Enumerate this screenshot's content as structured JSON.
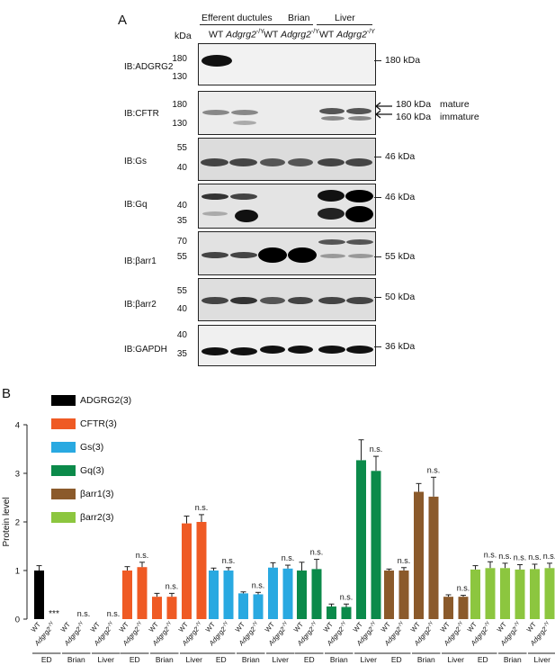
{
  "panelA": {
    "label": "A",
    "kda_header": "kDa",
    "groups": [
      "Efferent ductules",
      "Brian",
      "Liver"
    ],
    "lanes": [
      {
        "wt": "WT",
        "ko": "Adgrg2",
        "sup": "-/Y"
      },
      {
        "wt": "WT",
        "ko": "Adgrg2",
        "sup": "-/Y"
      },
      {
        "wt": "WT",
        "ko": "Adgrg2",
        "sup": "-/Y"
      }
    ],
    "blots": [
      {
        "label": "IB:ADGRG2",
        "left_markers": [
          "180",
          "130"
        ],
        "right_labels": [
          "180 kDa"
        ]
      },
      {
        "label": "IB:CFTR",
        "left_markers": [
          "180",
          "130"
        ],
        "right_labels": [
          "180 kDa",
          "mature",
          "160 kDa",
          "immature"
        ]
      },
      {
        "label": "IB:Gs",
        "left_markers": [
          "55",
          "40"
        ],
        "right_labels": [
          "46 kDa"
        ]
      },
      {
        "label": "IB:Gq",
        "left_markers": [
          "40",
          "35"
        ],
        "right_labels": [
          "46 kDa"
        ]
      },
      {
        "label": "IB:βarr1",
        "left_markers": [
          "70",
          "55"
        ],
        "right_labels": [
          "55 kDa"
        ]
      },
      {
        "label": "IB:βarr2",
        "left_markers": [
          "55",
          "40"
        ],
        "right_labels": [
          "50 kDa"
        ]
      },
      {
        "label": "IB:GAPDH",
        "left_markers": [
          "40",
          "35"
        ],
        "right_labels": [
          "36 kDa"
        ]
      }
    ]
  },
  "panelB": {
    "label": "B",
    "legend": [
      {
        "name": "ADGRG2(3)",
        "color": "#000000"
      },
      {
        "name": "CFTR(3)",
        "color": "#ef5a24"
      },
      {
        "name": "Gs(3)",
        "color": "#29a9e1"
      },
      {
        "name": "Gq(3)",
        "color": "#0b8a4a"
      },
      {
        "name": "βarr1(3)",
        "color": "#8b5a2b"
      },
      {
        "name": "βarr2(3)",
        "color": "#8cc63f"
      }
    ],
    "xtick_wt": "WT",
    "xtick_ko": "Adgrg2",
    "xtick_ko_sup": "-/Y",
    "tissues": [
      "ED",
      "Brian",
      "Liver"
    ]
  },
  "chart_data": {
    "type": "bar",
    "ylabel": "Protein level",
    "ylim": [
      0,
      4
    ],
    "yticks": [
      0,
      1,
      2,
      3,
      4
    ],
    "groups": [
      {
        "name": "ADGRG2(3)",
        "color": "#000000",
        "values": [
          1.0,
          0,
          0,
          0,
          0,
          0
        ],
        "errors": [
          0.1,
          0,
          0,
          0,
          0,
          0
        ],
        "annotations": [
          "",
          "***",
          "",
          "n.s.",
          "",
          "n.s."
        ]
      },
      {
        "name": "CFTR(3)",
        "color": "#ef5a24",
        "values": [
          1.0,
          1.07,
          0.46,
          0.46,
          1.97,
          2.0
        ],
        "errors": [
          0.08,
          0.1,
          0.07,
          0.07,
          0.15,
          0.15
        ],
        "annotations": [
          "",
          "n.s.",
          "",
          "n.s.",
          "",
          "n.s."
        ]
      },
      {
        "name": "Gs(3)",
        "color": "#29a9e1",
        "values": [
          1.0,
          1.0,
          0.53,
          0.51,
          1.06,
          1.04
        ],
        "errors": [
          0.05,
          0.06,
          0.03,
          0.04,
          0.1,
          0.07
        ],
        "annotations": [
          "",
          "n.s.",
          "",
          "n.s.",
          "",
          "n.s."
        ]
      },
      {
        "name": "Gq(3)",
        "color": "#0b8a4a",
        "values": [
          1.0,
          1.03,
          0.26,
          0.25,
          3.27,
          3.05
        ],
        "errors": [
          0.17,
          0.2,
          0.05,
          0.06,
          0.42,
          0.3
        ],
        "annotations": [
          "",
          "n.s.",
          "",
          "n.s.",
          "",
          "n.s."
        ]
      },
      {
        "name": "βarr1(3)",
        "color": "#8b5a2b",
        "values": [
          1.0,
          1.0,
          2.62,
          2.52,
          0.46,
          0.46
        ],
        "errors": [
          0.03,
          0.06,
          0.17,
          0.4,
          0.04,
          0.03
        ],
        "annotations": [
          "",
          "n.s.",
          "",
          "n.s.",
          "",
          "n.s."
        ]
      },
      {
        "name": "βarr2(3)",
        "color": "#8cc63f",
        "values": [
          1.02,
          1.05,
          1.05,
          1.02,
          1.03,
          1.05
        ],
        "errors": [
          0.08,
          0.13,
          0.1,
          0.1,
          0.1,
          0.1
        ],
        "annotations": [
          "",
          "n.s.",
          "n.s.",
          "n.s.",
          "n.s.",
          "n.s."
        ]
      }
    ],
    "categories": [
      "WT",
      "Adgrg2-/Y",
      "WT",
      "Adgrg2-/Y",
      "WT",
      "Adgrg2-/Y"
    ],
    "category_groups": [
      "ED",
      "Brian",
      "Liver"
    ],
    "legend_position": "top-left"
  }
}
